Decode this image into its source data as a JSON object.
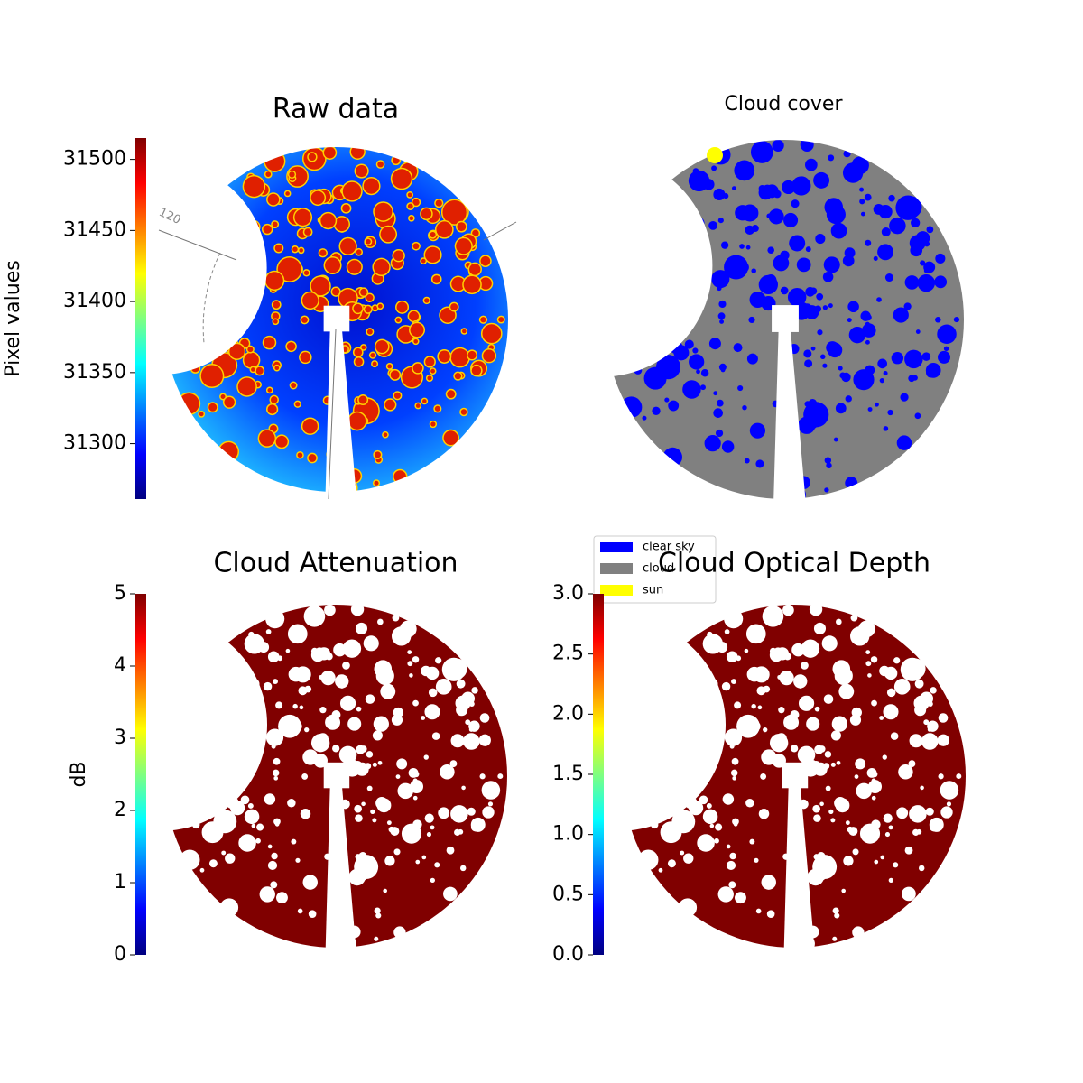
{
  "chart_data": [
    {
      "type": "image",
      "title": "Raw data",
      "colorbar_label": "Pixel values",
      "colormap": "jet",
      "ylim": [
        31261,
        31515
      ],
      "yticks": [
        31300,
        31350,
        31400,
        31450,
        31500
      ],
      "annotations": [
        "120"
      ]
    },
    {
      "type": "image",
      "title": "Cloud cover",
      "legend": [
        {
          "name": "clear sky",
          "color": "#0000ff"
        },
        {
          "name": "cloud",
          "color": "#808080"
        },
        {
          "name": "sun",
          "color": "#ffff00"
        }
      ]
    },
    {
      "type": "image",
      "title": "Cloud Attenuation",
      "colorbar_label": "dB",
      "colormap": "jet",
      "ylim": [
        0,
        5
      ],
      "yticks": [
        0,
        1,
        2,
        3,
        4,
        5
      ]
    },
    {
      "type": "image",
      "title": "Cloud Optical Depth",
      "colormap": "jet",
      "ylim": [
        0,
        3
      ],
      "yticks": [
        {
          "value": 0,
          "label": "0.0"
        },
        0.5,
        {
          "value": 1,
          "label": "1.0"
        },
        1.5,
        {
          "value": 2,
          "label": "2.0"
        },
        2.5,
        {
          "value": 3,
          "label": "3.0"
        }
      ]
    }
  ]
}
